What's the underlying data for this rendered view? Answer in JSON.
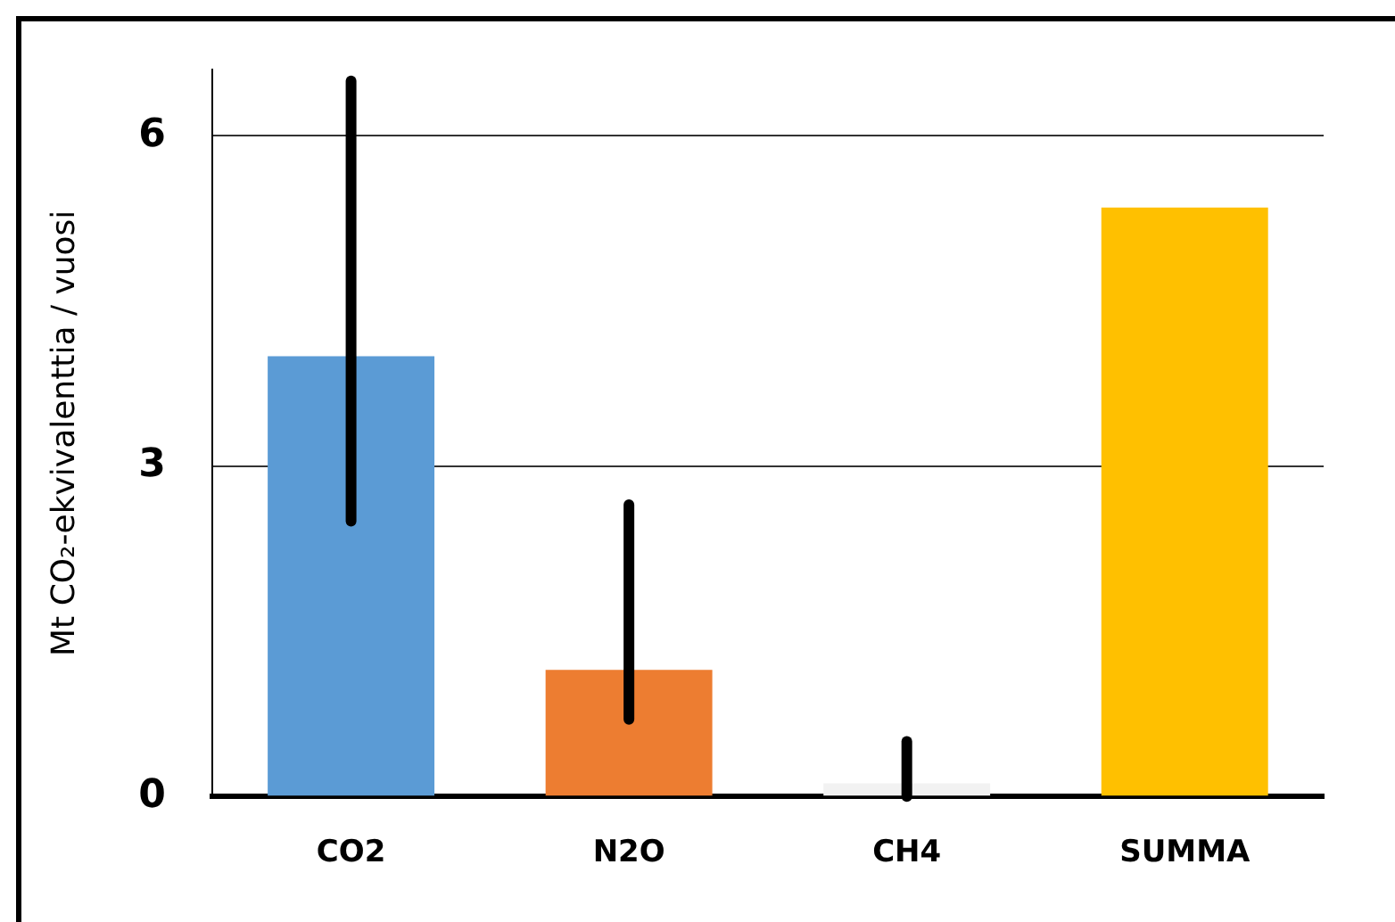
{
  "chart_data": {
    "type": "bar",
    "ylabel": "Mt CO₂-ekvivalenttia / vuosi",
    "categories": [
      "CO2",
      "N2O",
      "CH4",
      "SUMMA"
    ],
    "values": [
      4.0,
      1.15,
      0.12,
      5.35
    ],
    "colors": [
      "#5b9bd5",
      "#ed7d31",
      "#f2f2f2",
      "#ffc000"
    ],
    "errors": [
      [
        2.5,
        6.5
      ],
      [
        0.7,
        2.65
      ],
      [
        0,
        0.5
      ],
      null
    ],
    "ylim": [
      0,
      6.6
    ],
    "yticks": [
      0,
      3,
      6
    ],
    "grid": "y"
  }
}
